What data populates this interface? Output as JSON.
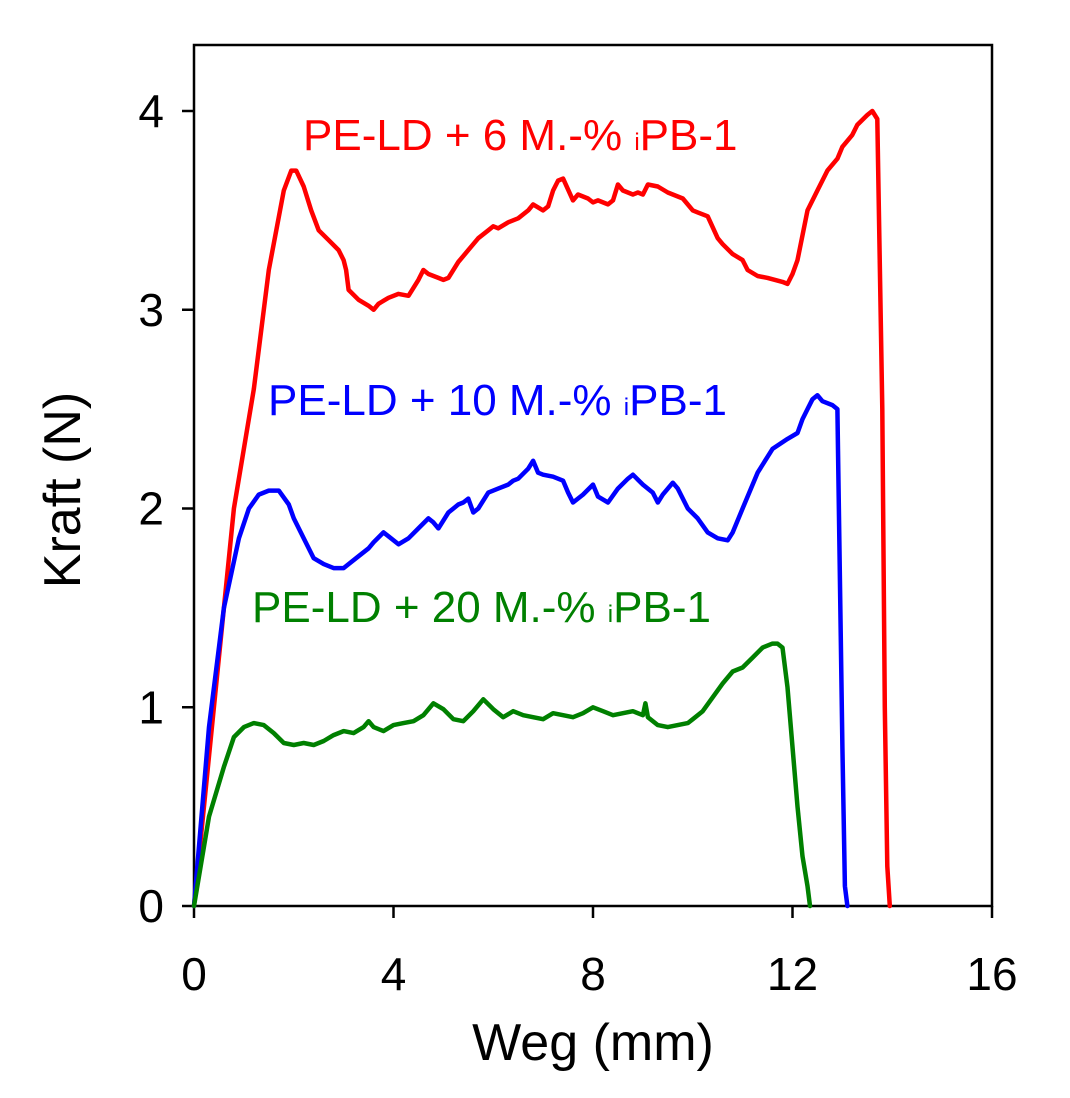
{
  "chart_data": {
    "type": "line",
    "title": "",
    "xlabel": "Weg (mm)",
    "ylabel": "Kraft (N)",
    "xlim": [
      0,
      16
    ],
    "ylim": [
      0,
      4.3
    ],
    "x_ticks": [
      "0",
      "4",
      "8",
      "12",
      "16"
    ],
    "y_ticks": [
      "0",
      "1",
      "2",
      "3",
      "4"
    ],
    "grid": false,
    "series": [
      {
        "name": "PE-LD + 6 M.-% iPB-1",
        "label_prefix": "PE-LD + 6 M.-% ",
        "label_sub": "i",
        "label_suffix": "PB-1",
        "color": "#ff0000",
        "x": [
          0,
          0.4,
          0.8,
          1.2,
          1.5,
          1.8,
          1.95,
          2.05,
          2.2,
          2.35,
          2.5,
          2.7,
          2.9,
          3.0,
          3.05,
          3.1,
          3.3,
          3.5,
          3.6,
          3.7,
          3.9,
          4.1,
          4.3,
          4.5,
          4.6,
          4.7,
          4.9,
          5.0,
          5.1,
          5.3,
          5.5,
          5.7,
          5.9,
          6.0,
          6.1,
          6.3,
          6.5,
          6.7,
          6.8,
          7.0,
          7.1,
          7.2,
          7.3,
          7.4,
          7.6,
          7.7,
          7.9,
          8.0,
          8.1,
          8.3,
          8.4,
          8.5,
          8.6,
          8.8,
          8.9,
          9.0,
          9.1,
          9.3,
          9.5,
          9.7,
          9.8,
          10.0,
          10.1,
          10.3,
          10.5,
          10.6,
          10.8,
          11.0,
          11.1,
          11.3,
          11.5,
          11.8,
          11.9,
          12.0,
          12.1,
          12.3,
          12.5,
          12.7,
          12.9,
          13.0,
          13.2,
          13.3,
          13.5,
          13.6,
          13.7,
          13.8,
          13.85,
          13.9,
          13.95
        ],
        "y": [
          0,
          1.0,
          2.0,
          2.6,
          3.2,
          3.6,
          3.7,
          3.7,
          3.62,
          3.5,
          3.4,
          3.35,
          3.3,
          3.25,
          3.2,
          3.1,
          3.05,
          3.02,
          3.0,
          3.03,
          3.06,
          3.08,
          3.07,
          3.15,
          3.2,
          3.18,
          3.16,
          3.15,
          3.16,
          3.24,
          3.3,
          3.36,
          3.4,
          3.42,
          3.41,
          3.44,
          3.46,
          3.5,
          3.53,
          3.5,
          3.52,
          3.6,
          3.65,
          3.66,
          3.55,
          3.58,
          3.56,
          3.54,
          3.55,
          3.53,
          3.55,
          3.63,
          3.6,
          3.58,
          3.59,
          3.58,
          3.63,
          3.62,
          3.59,
          3.57,
          3.56,
          3.5,
          3.49,
          3.47,
          3.36,
          3.33,
          3.28,
          3.25,
          3.2,
          3.17,
          3.16,
          3.14,
          3.13,
          3.18,
          3.25,
          3.5,
          3.6,
          3.7,
          3.76,
          3.82,
          3.88,
          3.93,
          3.98,
          4.0,
          3.96,
          2.5,
          1.0,
          0.2,
          0
        ]
      },
      {
        "name": "PE-LD + 10 M.-% iPB-1",
        "label_prefix": "PE-LD + 10 M.-% ",
        "label_sub": "i",
        "label_suffix": "PB-1",
        "color": "#0000ff",
        "x": [
          0,
          0.3,
          0.6,
          0.9,
          1.1,
          1.3,
          1.5,
          1.7,
          1.9,
          2.0,
          2.2,
          2.4,
          2.6,
          2.8,
          3.0,
          3.1,
          3.3,
          3.5,
          3.6,
          3.8,
          3.9,
          4.1,
          4.3,
          4.5,
          4.7,
          4.8,
          4.9,
          5.1,
          5.2,
          5.3,
          5.4,
          5.5,
          5.6,
          5.7,
          5.9,
          6.1,
          6.3,
          6.4,
          6.5,
          6.7,
          6.8,
          6.9,
          7.0,
          7.2,
          7.4,
          7.5,
          7.6,
          7.8,
          8.0,
          8.1,
          8.3,
          8.5,
          8.7,
          8.8,
          9.0,
          9.2,
          9.3,
          9.4,
          9.6,
          9.7,
          9.9,
          10.1,
          10.3,
          10.5,
          10.7,
          10.8,
          11.0,
          11.3,
          11.6,
          11.9,
          12.1,
          12.2,
          12.3,
          12.4,
          12.5,
          12.6,
          12.8,
          12.9,
          13.0,
          13.05,
          13.1
        ],
        "y": [
          0,
          0.9,
          1.5,
          1.85,
          2.0,
          2.07,
          2.09,
          2.09,
          2.02,
          1.95,
          1.85,
          1.75,
          1.72,
          1.7,
          1.7,
          1.72,
          1.76,
          1.8,
          1.83,
          1.88,
          1.86,
          1.82,
          1.85,
          1.9,
          1.95,
          1.93,
          1.9,
          1.98,
          2.0,
          2.02,
          2.03,
          2.05,
          1.98,
          2.0,
          2.08,
          2.1,
          2.12,
          2.14,
          2.15,
          2.2,
          2.24,
          2.18,
          2.17,
          2.16,
          2.14,
          2.08,
          2.03,
          2.07,
          2.12,
          2.06,
          2.03,
          2.1,
          2.15,
          2.17,
          2.12,
          2.08,
          2.03,
          2.07,
          2.13,
          2.1,
          2.0,
          1.95,
          1.88,
          1.85,
          1.84,
          1.88,
          2.0,
          2.18,
          2.3,
          2.35,
          2.38,
          2.45,
          2.5,
          2.55,
          2.57,
          2.54,
          2.52,
          2.5,
          0.8,
          0.1,
          0
        ]
      },
      {
        "name": "PE-LD + 20 M.-% iPB-1",
        "label_prefix": "PE-LD + 20 M.-% ",
        "label_sub": "i",
        "label_suffix": "PB-1",
        "color": "#008000",
        "x": [
          0,
          0.3,
          0.6,
          0.8,
          1.0,
          1.2,
          1.4,
          1.6,
          1.8,
          2.0,
          2.2,
          2.4,
          2.6,
          2.8,
          3.0,
          3.2,
          3.4,
          3.5,
          3.6,
          3.8,
          4.0,
          4.2,
          4.4,
          4.6,
          4.8,
          5.0,
          5.2,
          5.4,
          5.6,
          5.8,
          6.0,
          6.2,
          6.4,
          6.6,
          6.8,
          7.0,
          7.2,
          7.4,
          7.6,
          7.8,
          8.0,
          8.2,
          8.4,
          8.6,
          8.8,
          9.0,
          9.05,
          9.1,
          9.3,
          9.5,
          9.7,
          9.9,
          10.0,
          10.2,
          10.4,
          10.6,
          10.8,
          11.0,
          11.2,
          11.4,
          11.6,
          11.7,
          11.8,
          11.9,
          12.0,
          12.1,
          12.2,
          12.3,
          12.35
        ],
        "y": [
          0,
          0.45,
          0.7,
          0.85,
          0.9,
          0.92,
          0.91,
          0.87,
          0.82,
          0.81,
          0.82,
          0.81,
          0.83,
          0.86,
          0.88,
          0.87,
          0.9,
          0.93,
          0.9,
          0.88,
          0.91,
          0.92,
          0.93,
          0.96,
          1.02,
          0.99,
          0.94,
          0.93,
          0.98,
          1.04,
          0.99,
          0.95,
          0.98,
          0.96,
          0.95,
          0.94,
          0.97,
          0.96,
          0.95,
          0.97,
          1.0,
          0.98,
          0.96,
          0.97,
          0.98,
          0.96,
          1.02,
          0.95,
          0.91,
          0.9,
          0.91,
          0.92,
          0.94,
          0.98,
          1.05,
          1.12,
          1.18,
          1.2,
          1.25,
          1.3,
          1.32,
          1.32,
          1.3,
          1.1,
          0.8,
          0.5,
          0.25,
          0.1,
          0
        ]
      }
    ]
  }
}
